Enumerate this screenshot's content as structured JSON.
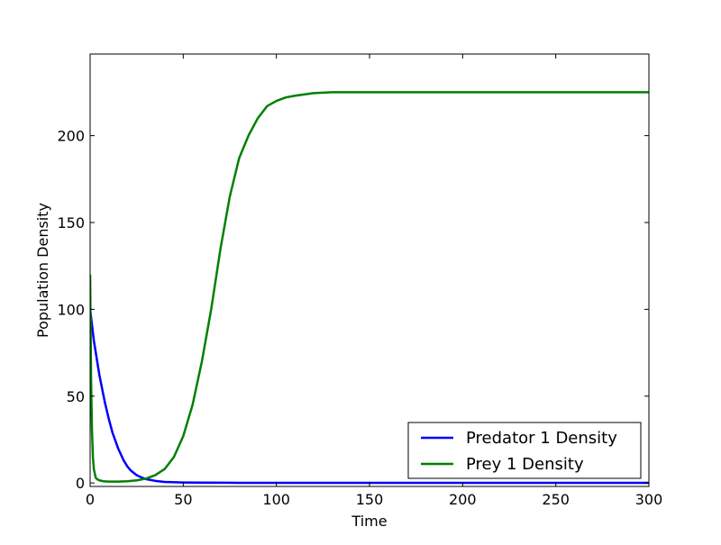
{
  "chart_data": {
    "type": "line",
    "title": "",
    "xlabel": "Time",
    "ylabel": "Population Density",
    "xlim": [
      0,
      300
    ],
    "ylim": [
      -2,
      247
    ],
    "x_ticks": [
      0,
      50,
      100,
      150,
      200,
      250,
      300
    ],
    "y_ticks": [
      0,
      50,
      100,
      150,
      200
    ],
    "grid": false,
    "legend_position": "bottom-right",
    "series": [
      {
        "name": "Predator 1 Density",
        "color": "#0000ff",
        "x": [
          0,
          2,
          5,
          8,
          10,
          12,
          15,
          18,
          20,
          22,
          25,
          28,
          30,
          35,
          40,
          50,
          60,
          80,
          100,
          150,
          200,
          250,
          300
        ],
        "y": [
          100,
          82,
          62,
          46,
          37,
          29,
          20,
          13,
          9.5,
          7,
          4.5,
          3,
          2.2,
          1.2,
          0.6,
          0.3,
          0.2,
          0.1,
          0.1,
          0.1,
          0.1,
          0.1,
          0.1
        ]
      },
      {
        "name": "Prey 1 Density",
        "color": "#008000",
        "x": [
          0,
          0.5,
          1,
          1.5,
          2,
          3,
          4,
          5,
          7,
          10,
          15,
          20,
          25,
          30,
          35,
          40,
          45,
          50,
          55,
          60,
          65,
          70,
          75,
          80,
          85,
          90,
          95,
          100,
          105,
          110,
          120,
          130,
          140,
          150,
          200,
          250,
          300
        ],
        "y": [
          120,
          60,
          30,
          15,
          8,
          3,
          2,
          1.5,
          1,
          0.8,
          0.8,
          1,
          1.5,
          2.5,
          4.5,
          8,
          15,
          27,
          45,
          70,
          100,
          135,
          165,
          187,
          200,
          210,
          217,
          220,
          222,
          223,
          224.5,
          225,
          225,
          225,
          225,
          225,
          225
        ]
      }
    ]
  }
}
